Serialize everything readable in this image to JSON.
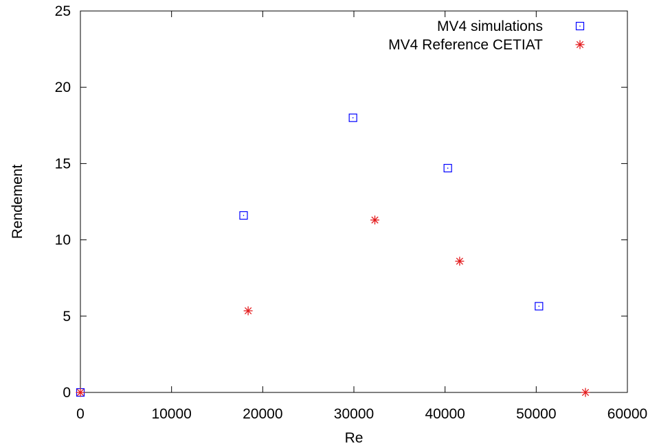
{
  "chart_data": {
    "type": "scatter",
    "title": "",
    "xlabel": "Re",
    "ylabel": "Rendement",
    "xlim": [
      0,
      60000
    ],
    "ylim": [
      0,
      25
    ],
    "xticks": [
      0,
      10000,
      20000,
      30000,
      40000,
      50000,
      60000
    ],
    "yticks": [
      0,
      5,
      10,
      15,
      20,
      25
    ],
    "grid": false,
    "legend_position": "top-right",
    "series": [
      {
        "name": "MV4 simulations",
        "marker": "square",
        "color": "#0000ff",
        "points": [
          {
            "x": 0,
            "y": 0
          },
          {
            "x": 17900,
            "y": 11.6
          },
          {
            "x": 29900,
            "y": 18.0
          },
          {
            "x": 40300,
            "y": 14.7
          },
          {
            "x": 50300,
            "y": 5.65
          }
        ]
      },
      {
        "name": "MV4 Reference CETIAT",
        "marker": "asterisk",
        "color": "#e31a1c",
        "points": [
          {
            "x": 0,
            "y": 0
          },
          {
            "x": 18400,
            "y": 5.35
          },
          {
            "x": 32300,
            "y": 11.3
          },
          {
            "x": 41600,
            "y": 8.6
          },
          {
            "x": 55400,
            "y": 0
          }
        ]
      }
    ]
  }
}
